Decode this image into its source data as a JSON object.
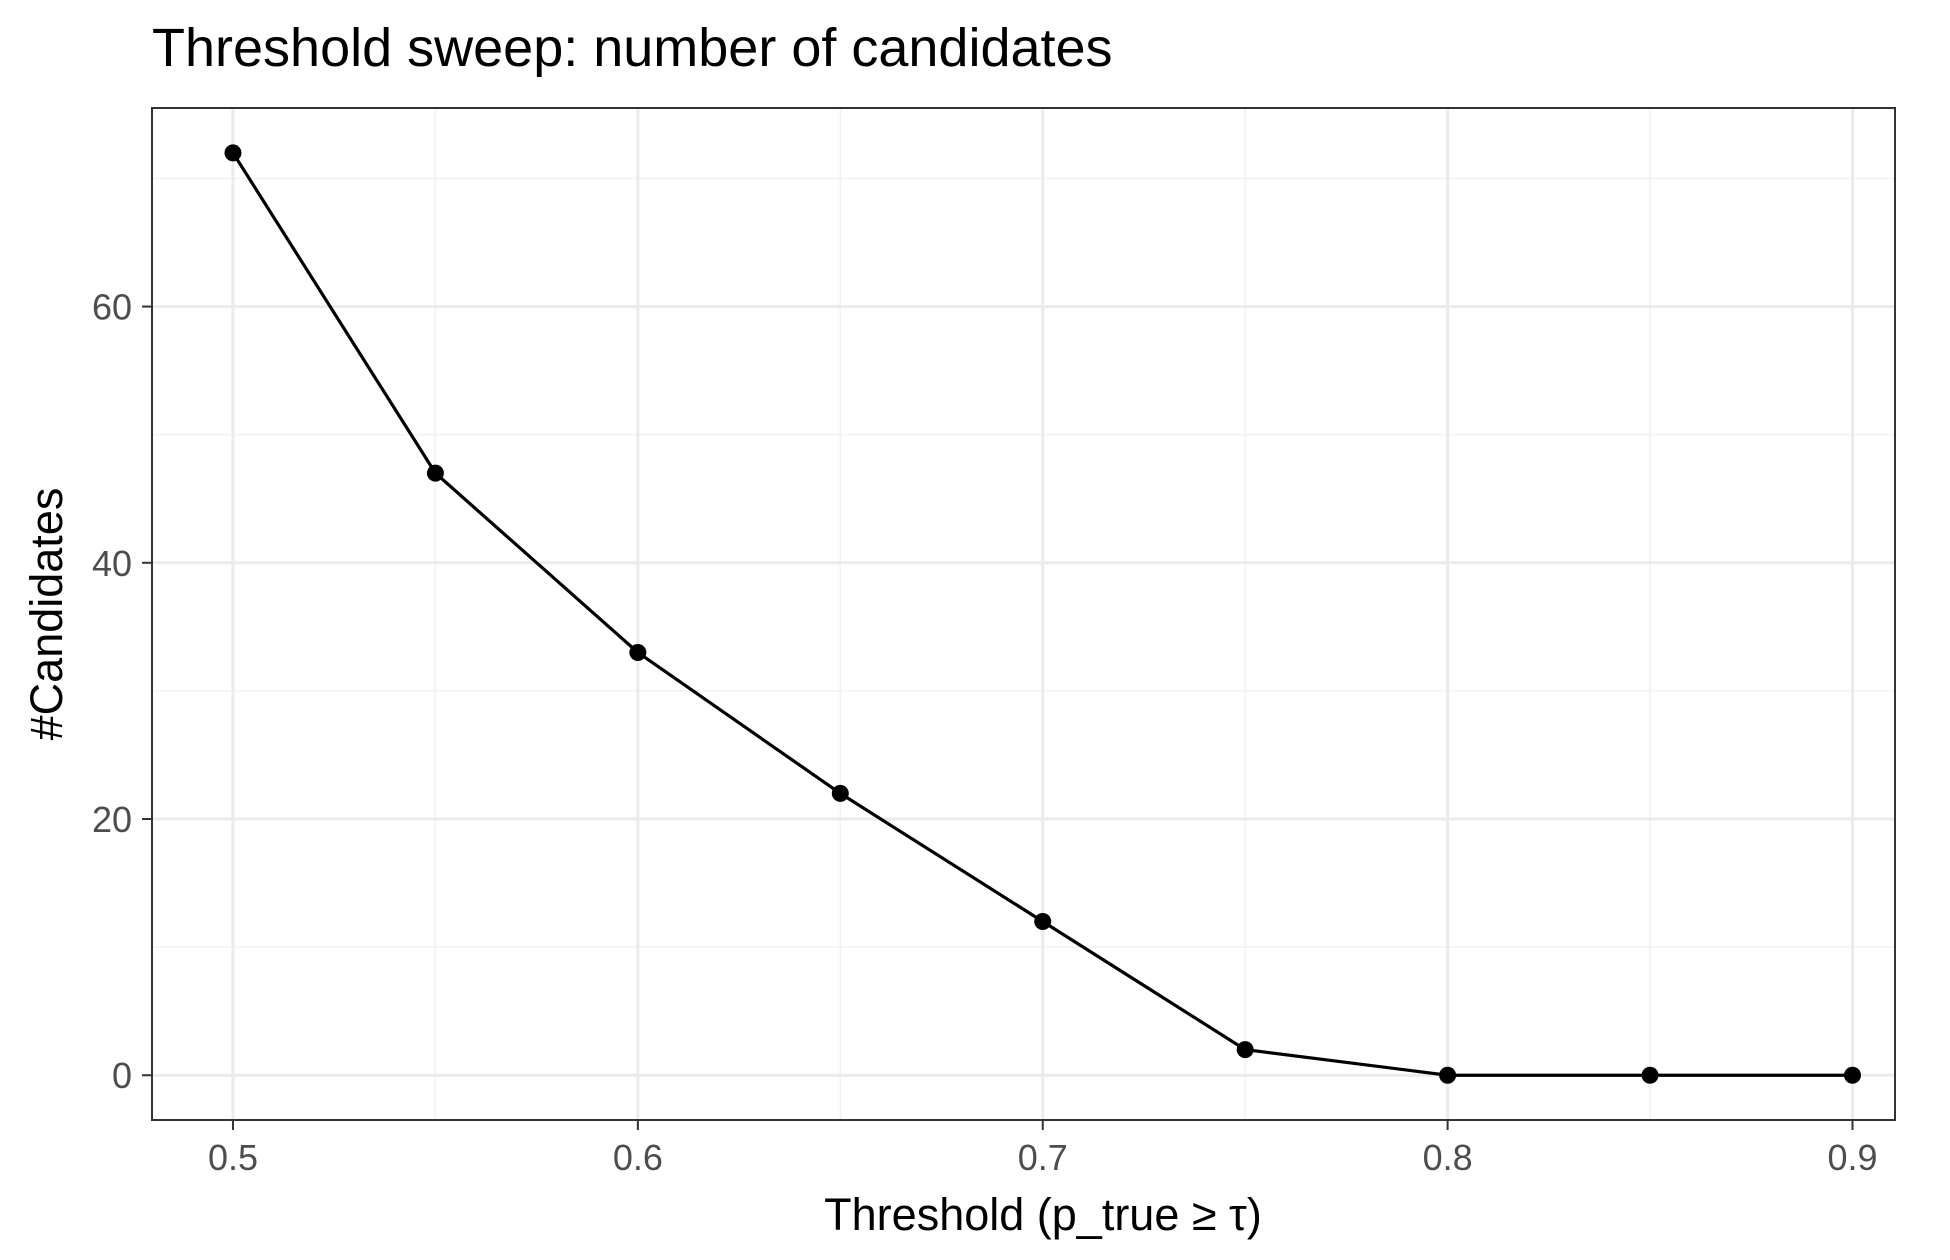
{
  "chart_data": {
    "type": "line",
    "title": "Threshold sweep: number of candidates",
    "xlabel": "Threshold (p_true ≥ τ)",
    "ylabel": "#Candidates",
    "x": [
      0.5,
      0.55,
      0.6,
      0.65,
      0.7,
      0.75,
      0.8,
      0.85,
      0.9
    ],
    "series": [
      {
        "values": [
          72,
          47,
          33,
          22,
          12,
          2,
          0,
          0,
          0
        ]
      }
    ],
    "x_ticks": [
      0.5,
      0.6,
      0.7,
      0.8,
      0.9
    ],
    "x_tick_labels": [
      "0.5",
      "0.6",
      "0.7",
      "0.8",
      "0.9"
    ],
    "y_ticks": [
      0,
      20,
      40,
      60
    ],
    "y_tick_labels": [
      "0",
      "20",
      "40",
      "60"
    ],
    "xlim": [
      0.48,
      0.9105
    ],
    "ylim": [
      -3.495,
      75.5
    ],
    "grid": true,
    "legend": "none",
    "colors": {
      "line": "#000000",
      "point": "#000000",
      "grid_major": "#ebebeb",
      "grid_minor": "#f2f2f2",
      "panel_border": "#333333"
    }
  }
}
